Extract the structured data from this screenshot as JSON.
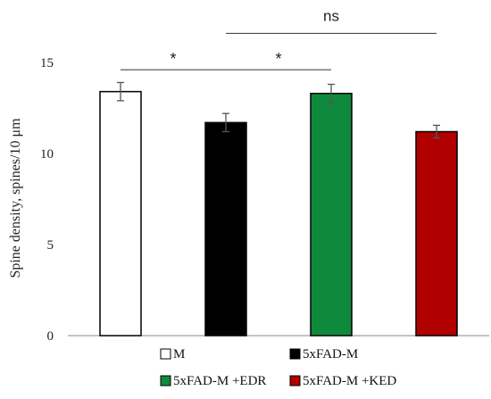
{
  "chart_data": {
    "type": "bar",
    "title": "",
    "xlabel": "",
    "ylabel": "Spine density, spines/10 μm",
    "ylim": [
      0,
      15
    ],
    "yticks": [
      0,
      5,
      10,
      15
    ],
    "grid": false,
    "legend_position": "bottom",
    "categories": [
      "M",
      "5xFAD-M",
      "5xFAD-M +EDR",
      "5xFAD-M +KED"
    ],
    "values": [
      13.4,
      11.7,
      13.3,
      11.2
    ],
    "errors": [
      0.5,
      0.5,
      0.5,
      0.35
    ],
    "colors": [
      "#ffffff",
      "#000000",
      "#0f8a3c",
      "#b00000"
    ],
    "edge_color": "#000000",
    "significance": [
      {
        "from": 0,
        "to": 1,
        "label": "*",
        "level": 14.6
      },
      {
        "from": 1,
        "to": 2,
        "label": "*",
        "level": 14.6
      },
      {
        "from": 1,
        "to": 3,
        "label": "ns",
        "level": 16.6
      }
    ]
  }
}
